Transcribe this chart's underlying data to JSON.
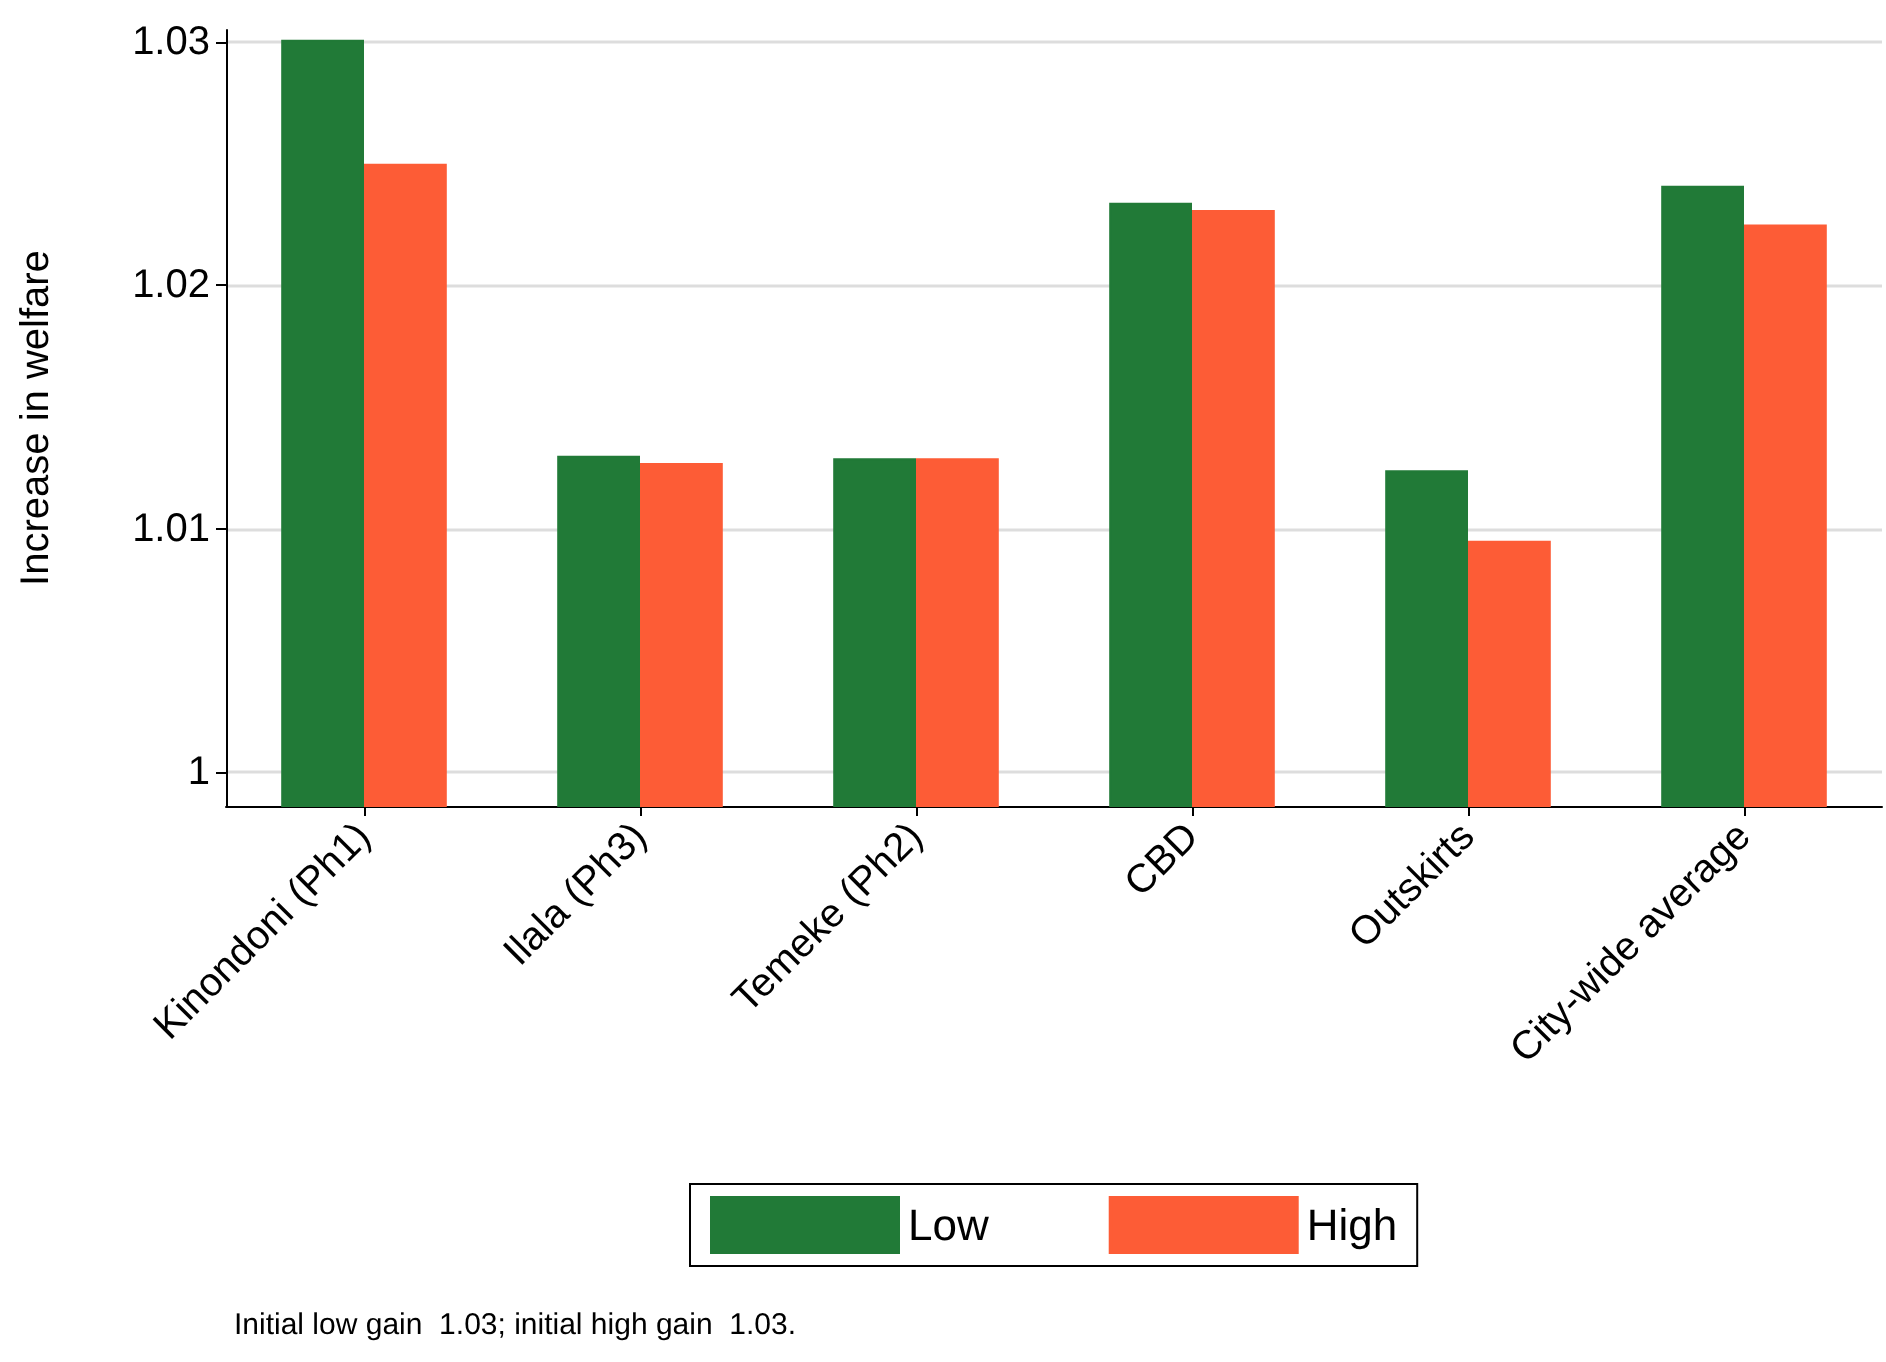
{
  "chart_data": {
    "type": "bar",
    "ylabel": "Increase in welfare",
    "categories": [
      "Kinondoni (Ph1)",
      "Ilala (Ph3)",
      "Temeke (Ph2)",
      "CBD",
      "Outskirts",
      "City-wide average"
    ],
    "series": [
      {
        "name": "Low",
        "color": "#217a37",
        "values": [
          1.0301,
          1.013,
          1.0129,
          1.0234,
          1.0124,
          1.0241
        ]
      },
      {
        "name": "High",
        "color": "#fd5c36",
        "values": [
          1.025,
          1.0127,
          1.0129,
          1.0231,
          1.0095,
          1.0225
        ]
      }
    ],
    "ylim": [
      0.9986,
      1.0305
    ],
    "yticks": [
      1,
      1.01,
      1.02,
      1.03
    ],
    "grid": "y",
    "legend": "bottom",
    "annotations": [
      "Initial low gain  1.03; initial high gain  1.03."
    ]
  }
}
